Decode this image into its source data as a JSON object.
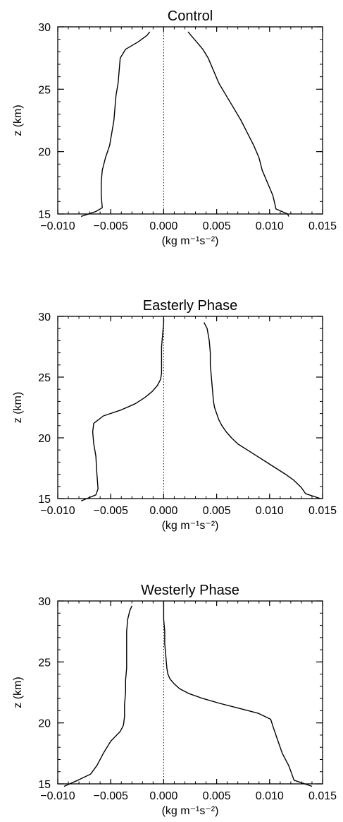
{
  "chart_data": [
    {
      "type": "line",
      "title": "Control",
      "xlabel": "(kg m⁻¹s⁻²)",
      "ylabel": "z (km)",
      "xlim": [
        -0.01,
        0.015
      ],
      "ylim": [
        15,
        30
      ],
      "xticks": [
        "-0.010",
        "-0.005",
        "0.000",
        "0.005",
        "0.010",
        "0.015"
      ],
      "yticks": [
        "15",
        "20",
        "25",
        "30"
      ],
      "reference_line": {
        "x": 0.0,
        "style": "dotted"
      },
      "series": [
        {
          "z": [
            14.8,
            15.2,
            15.5,
            16.5,
            17.5,
            18.5,
            19.5,
            20.5,
            21.5,
            22.5,
            23.5,
            24.5,
            25.5,
            26.5,
            27.5,
            28.2,
            28.8,
            29.3,
            29.6
          ],
          "x": [
            -0.0078,
            -0.0064,
            -0.0058,
            -0.0059,
            -0.0059,
            -0.0058,
            -0.0055,
            -0.0051,
            -0.0049,
            -0.0047,
            -0.0046,
            -0.0045,
            -0.0043,
            -0.0042,
            -0.0041,
            -0.0036,
            -0.0024,
            -0.0016,
            -0.0013
          ]
        },
        {
          "z": [
            14.8,
            15.0,
            15.4,
            15.8,
            16.5,
            17.5,
            18.5,
            19.5,
            20.5,
            21.5,
            22.5,
            23.5,
            24.5,
            25.5,
            26.5,
            27.5,
            28.2,
            28.8,
            29.3,
            29.6
          ],
          "x": [
            0.0118,
            0.0117,
            0.0106,
            0.0105,
            0.0103,
            0.0098,
            0.0093,
            0.009,
            0.0085,
            0.0079,
            0.0073,
            0.0066,
            0.0059,
            0.0052,
            0.0047,
            0.0042,
            0.0037,
            0.0031,
            0.0026,
            0.0023
          ]
        }
      ]
    },
    {
      "type": "line",
      "title": "Easterly Phase",
      "xlabel": "(kg m⁻¹s⁻²)",
      "ylabel": "z (km)",
      "xlim": [
        -0.01,
        0.015
      ],
      "ylim": [
        15,
        30
      ],
      "xticks": [
        "-0.010",
        "-0.005",
        "0.000",
        "0.005",
        "0.010",
        "0.015"
      ],
      "yticks": [
        "15",
        "20",
        "25",
        "30"
      ],
      "reference_line": {
        "x": 0.0,
        "style": "dotted"
      },
      "series": [
        {
          "z": [
            14.8,
            15.3,
            15.8,
            17.0,
            18.5,
            19.5,
            20.5,
            21.2,
            21.8,
            22.3,
            22.8,
            23.3,
            23.8,
            24.3,
            24.8,
            25.3,
            26.0,
            27.5,
            28.5,
            29.5,
            29.8
          ],
          "x": [
            -0.0078,
            -0.0064,
            -0.0062,
            -0.0063,
            -0.0064,
            -0.0066,
            -0.0067,
            -0.0066,
            -0.0057,
            -0.004,
            -0.0027,
            -0.0018,
            -0.0011,
            -0.0006,
            -0.0003,
            -0.0002,
            -0.0002,
            -0.0002,
            -0.0001,
            0.0,
            0.0
          ]
        },
        {
          "z": [
            15.0,
            15.4,
            15.9,
            16.5,
            17.0,
            17.5,
            18.0,
            18.5,
            19.0,
            19.5,
            20.0,
            20.5,
            21.0,
            21.5,
            22.0,
            22.5,
            23.0,
            24.0,
            25.0,
            26.0,
            27.0,
            28.0,
            29.0,
            29.5
          ],
          "x": [
            0.0148,
            0.0134,
            0.013,
            0.0123,
            0.0115,
            0.0106,
            0.0097,
            0.0088,
            0.0079,
            0.007,
            0.0064,
            0.0059,
            0.0055,
            0.0052,
            0.005,
            0.0048,
            0.0047,
            0.0046,
            0.0045,
            0.0044,
            0.0044,
            0.0043,
            0.0041,
            0.0038
          ]
        }
      ]
    },
    {
      "type": "line",
      "title": "Westerly Phase",
      "xlabel": "(kg m⁻¹s⁻²)",
      "ylabel": "z (km)",
      "xlim": [
        -0.01,
        0.015
      ],
      "ylim": [
        15,
        30
      ],
      "xticks": [
        "-0.010",
        "-0.005",
        "0.000",
        "0.005",
        "0.010",
        "0.015"
      ],
      "yticks": [
        "15",
        "20",
        "25",
        "30"
      ],
      "reference_line": {
        "x": 0.0,
        "style": "dotted"
      },
      "series": [
        {
          "z": [
            14.8,
            15.3,
            15.8,
            16.5,
            17.5,
            18.5,
            19.3,
            19.8,
            20.5,
            21.5,
            22.5,
            23.5,
            24.5,
            25.5,
            26.5,
            27.5,
            28.5,
            29.2,
            29.6
          ],
          "x": [
            -0.0094,
            -0.0081,
            -0.0069,
            -0.0063,
            -0.0057,
            -0.005,
            -0.0041,
            -0.0038,
            -0.0037,
            -0.0037,
            -0.0036,
            -0.0036,
            -0.0035,
            -0.0035,
            -0.0035,
            -0.0035,
            -0.0034,
            -0.0032,
            -0.003
          ]
        },
        {
          "z": [
            14.8,
            15.3,
            15.8,
            16.5,
            17.5,
            18.5,
            19.5,
            20.3,
            20.8,
            21.2,
            21.6,
            22.0,
            22.4,
            22.8,
            23.2,
            23.6,
            24.0,
            24.5,
            25.5,
            26.5,
            27.5,
            28.5,
            29.5,
            30.0
          ],
          "x": [
            0.014,
            0.0123,
            0.0121,
            0.0118,
            0.0112,
            0.0108,
            0.0104,
            0.0101,
            0.0089,
            0.0071,
            0.0053,
            0.0037,
            0.0024,
            0.0015,
            0.001,
            0.0006,
            0.0004,
            0.0003,
            0.0002,
            0.0001,
            0.0001,
            0.0,
            0.0,
            0.0
          ]
        }
      ]
    }
  ]
}
